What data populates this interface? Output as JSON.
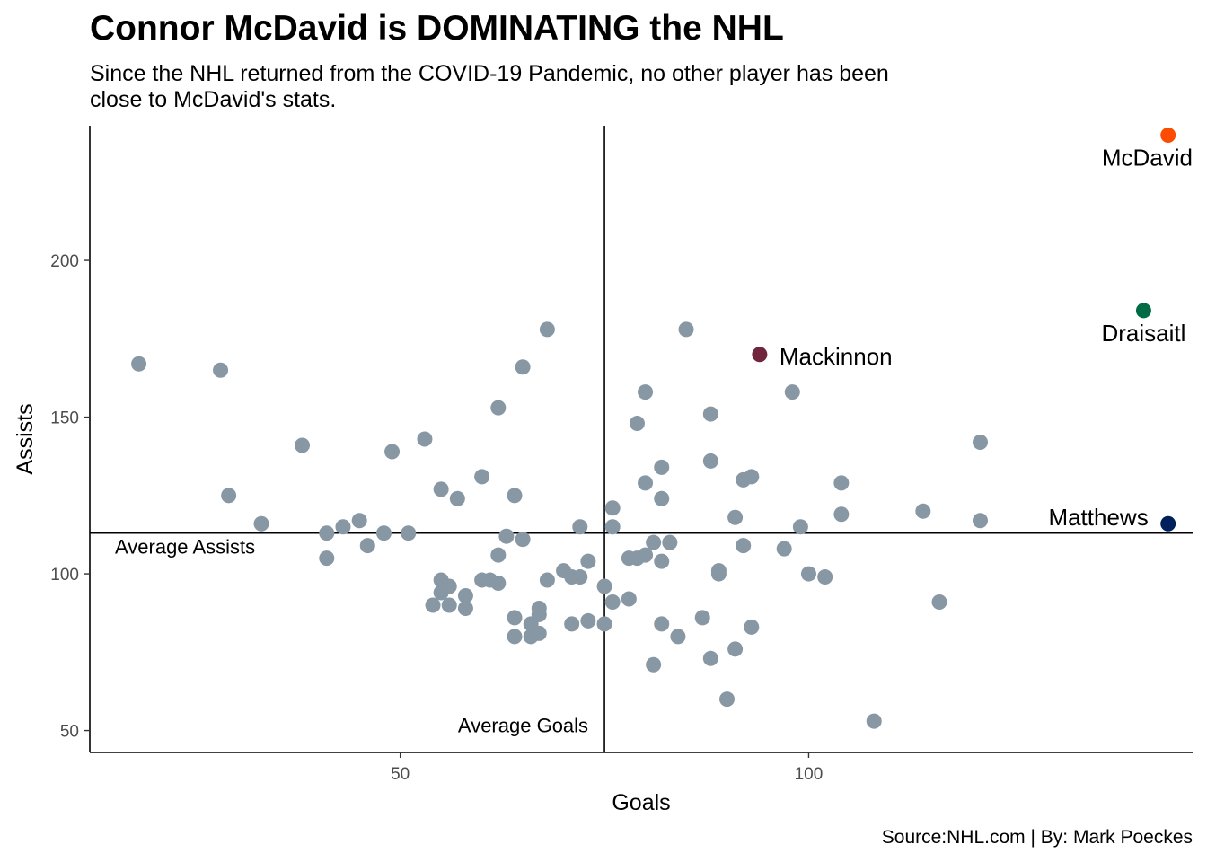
{
  "header": {
    "title": "Connor McDavid is DOMINATING the NHL",
    "subtitle": "Since the NHL returned from the COVID-19 Pandemic, no other player has been close to McDavid's stats."
  },
  "footer": {
    "caption": "Source:NHL.com | By: Mark Poeckes"
  },
  "chart_data": {
    "type": "scatter",
    "xlabel": "Goals",
    "ylabel": "Assists",
    "xlim": [
      12,
      147
    ],
    "ylim": [
      43,
      243
    ],
    "x_ticks": [
      50,
      100
    ],
    "y_ticks": [
      50,
      100,
      150,
      200
    ],
    "grid": false,
    "point_color": "#8797a3",
    "reference_lines": {
      "average_goals": 75,
      "average_goals_label": "Average Goals",
      "average_assists": 113,
      "average_assists_label": "Average Assists"
    },
    "highlighted": [
      {
        "label": "McDavid",
        "x": 144,
        "y": 240,
        "color": "#fc4c02"
      },
      {
        "label": "Draisaitl",
        "x": 141,
        "y": 184,
        "color": "#006b45"
      },
      {
        "label": "Mackinnon",
        "x": 94,
        "y": 170,
        "color": "#6f263d"
      },
      {
        "label": "Matthews",
        "x": 144,
        "y": 116,
        "color": "#00205b"
      }
    ],
    "points": [
      {
        "x": 18,
        "y": 167
      },
      {
        "x": 28,
        "y": 165
      },
      {
        "x": 29,
        "y": 125
      },
      {
        "x": 33,
        "y": 116
      },
      {
        "x": 38,
        "y": 141
      },
      {
        "x": 41,
        "y": 113
      },
      {
        "x": 41,
        "y": 105
      },
      {
        "x": 43,
        "y": 115
      },
      {
        "x": 45,
        "y": 117
      },
      {
        "x": 46,
        "y": 109
      },
      {
        "x": 48,
        "y": 113
      },
      {
        "x": 49,
        "y": 139
      },
      {
        "x": 51,
        "y": 113
      },
      {
        "x": 53,
        "y": 143
      },
      {
        "x": 54,
        "y": 90
      },
      {
        "x": 55,
        "y": 127
      },
      {
        "x": 55,
        "y": 98
      },
      {
        "x": 55,
        "y": 94
      },
      {
        "x": 56,
        "y": 96
      },
      {
        "x": 56,
        "y": 90
      },
      {
        "x": 57,
        "y": 124
      },
      {
        "x": 58,
        "y": 93
      },
      {
        "x": 58,
        "y": 89
      },
      {
        "x": 60,
        "y": 131
      },
      {
        "x": 60,
        "y": 98
      },
      {
        "x": 61,
        "y": 98
      },
      {
        "x": 62,
        "y": 97
      },
      {
        "x": 62,
        "y": 106
      },
      {
        "x": 62,
        "y": 153
      },
      {
        "x": 63,
        "y": 112
      },
      {
        "x": 64,
        "y": 125
      },
      {
        "x": 64,
        "y": 86
      },
      {
        "x": 64,
        "y": 80
      },
      {
        "x": 65,
        "y": 166
      },
      {
        "x": 65,
        "y": 111
      },
      {
        "x": 66,
        "y": 84
      },
      {
        "x": 66,
        "y": 80
      },
      {
        "x": 67,
        "y": 81
      },
      {
        "x": 67,
        "y": 87
      },
      {
        "x": 67,
        "y": 89
      },
      {
        "x": 68,
        "y": 178
      },
      {
        "x": 68,
        "y": 98
      },
      {
        "x": 70,
        "y": 101
      },
      {
        "x": 71,
        "y": 99
      },
      {
        "x": 71,
        "y": 84
      },
      {
        "x": 72,
        "y": 115
      },
      {
        "x": 72,
        "y": 99
      },
      {
        "x": 73,
        "y": 104
      },
      {
        "x": 73,
        "y": 85
      },
      {
        "x": 75,
        "y": 96
      },
      {
        "x": 75,
        "y": 84
      },
      {
        "x": 76,
        "y": 121
      },
      {
        "x": 76,
        "y": 115
      },
      {
        "x": 76,
        "y": 91
      },
      {
        "x": 78,
        "y": 105
      },
      {
        "x": 78,
        "y": 92
      },
      {
        "x": 79,
        "y": 148
      },
      {
        "x": 79,
        "y": 105
      },
      {
        "x": 80,
        "y": 158
      },
      {
        "x": 80,
        "y": 129
      },
      {
        "x": 80,
        "y": 106
      },
      {
        "x": 81,
        "y": 110
      },
      {
        "x": 81,
        "y": 71
      },
      {
        "x": 82,
        "y": 134
      },
      {
        "x": 82,
        "y": 124
      },
      {
        "x": 82,
        "y": 104
      },
      {
        "x": 82,
        "y": 84
      },
      {
        "x": 83,
        "y": 110
      },
      {
        "x": 84,
        "y": 80
      },
      {
        "x": 85,
        "y": 178
      },
      {
        "x": 87,
        "y": 86
      },
      {
        "x": 88,
        "y": 151
      },
      {
        "x": 88,
        "y": 136
      },
      {
        "x": 88,
        "y": 73
      },
      {
        "x": 89,
        "y": 101
      },
      {
        "x": 89,
        "y": 100
      },
      {
        "x": 90,
        "y": 60
      },
      {
        "x": 91,
        "y": 118
      },
      {
        "x": 91,
        "y": 76
      },
      {
        "x": 92,
        "y": 130
      },
      {
        "x": 92,
        "y": 109
      },
      {
        "x": 93,
        "y": 131
      },
      {
        "x": 93,
        "y": 83
      },
      {
        "x": 97,
        "y": 108
      },
      {
        "x": 98,
        "y": 158
      },
      {
        "x": 99,
        "y": 115
      },
      {
        "x": 100,
        "y": 100
      },
      {
        "x": 102,
        "y": 99
      },
      {
        "x": 104,
        "y": 129
      },
      {
        "x": 104,
        "y": 119
      },
      {
        "x": 108,
        "y": 53
      },
      {
        "x": 114,
        "y": 120
      },
      {
        "x": 116,
        "y": 91
      },
      {
        "x": 121,
        "y": 142
      },
      {
        "x": 121,
        "y": 117
      }
    ]
  }
}
